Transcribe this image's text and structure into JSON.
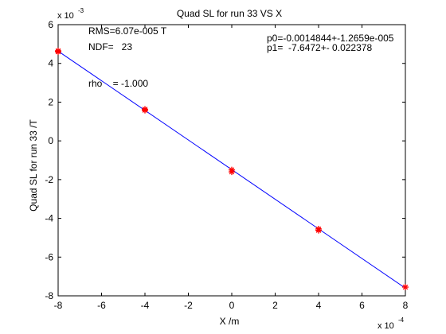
{
  "chart_data": {
    "type": "scatter",
    "title": "Quad SL for run 33 VS X",
    "xlabel": "X /m",
    "ylabel": "Quad SL for run 33 /T",
    "xlim": [
      -0.0008,
      0.0008
    ],
    "ylim": [
      -0.008,
      0.006
    ],
    "x_ticks": [
      -0.0008,
      -0.0006,
      -0.0004,
      -0.0002,
      0,
      0.0002,
      0.0004,
      0.0006,
      0.0008
    ],
    "x_tick_labels": [
      "-8",
      "-6",
      "-4",
      "-2",
      "0",
      "2",
      "4",
      "6",
      "8"
    ],
    "y_ticks": [
      -0.008,
      -0.006,
      -0.004,
      -0.002,
      0,
      0.002,
      0.004,
      0.006
    ],
    "y_tick_labels": [
      "-8",
      "-6",
      "-4",
      "-2",
      "0",
      "2",
      "4",
      "6"
    ],
    "x_multiplier_base": "x 10",
    "x_multiplier_exp": "-4",
    "y_multiplier_base": "x 10",
    "y_multiplier_exp": "-3",
    "grid": false,
    "legend": "none",
    "series": [
      {
        "x": [
          -0.0008,
          -0.0008,
          -0.0004,
          -0.0004,
          0,
          0,
          0.0004,
          0.0004,
          0.0008
        ],
        "y": [
          0.00465,
          0.0046,
          0.00163,
          0.00158,
          -0.0015,
          -0.0016,
          -0.00455,
          -0.00462,
          -0.00755
        ],
        "color": "#ff0000",
        "marker": "asterisk"
      }
    ],
    "fit_line": {
      "x": [
        -0.0008,
        0.0008
      ],
      "y": [
        0.0046333,
        -0.0076022
      ],
      "color": "#0000ff"
    },
    "annotations": [
      "RMS=6.07e-005 T",
      "NDF=   23",
      "rho    = -1.000",
      "p0=-0.0014844+-1.2659e-005",
      "p1=  -7.6472+- 0.022378"
    ]
  }
}
